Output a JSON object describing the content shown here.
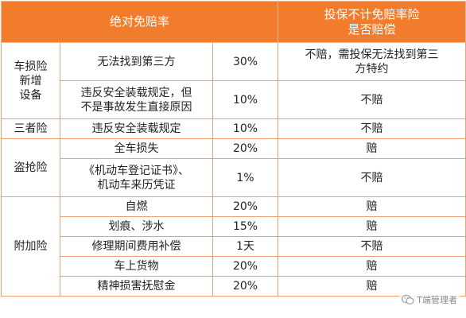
{
  "header": {
    "col_main": "绝对免赔率",
    "col_extra_line1": "投保不计免赔率险",
    "col_extra_line2": "是否赔偿"
  },
  "groups": [
    {
      "category": [
        "车损险",
        "新增",
        "设备"
      ],
      "rows": [
        {
          "item": [
            "无法找到第三方"
          ],
          "rate": "30%",
          "compensation": [
            "不赔，需投保无法找到第三",
            "方特约"
          ]
        },
        {
          "item": [
            "违反安全装载规定，但",
            "不是事故发生直接原因"
          ],
          "rate": "10%",
          "compensation": [
            "不赔"
          ]
        }
      ]
    },
    {
      "category": [
        "三者险"
      ],
      "rows": [
        {
          "item": [
            "违反安全装载规定"
          ],
          "rate": "10%",
          "compensation": [
            "不赔"
          ]
        }
      ]
    },
    {
      "category": [
        "盗抢险"
      ],
      "rows": [
        {
          "item": [
            "全车损失"
          ],
          "rate": "20%",
          "compensation": [
            "赔"
          ]
        },
        {
          "item": [
            "《机动车登记证书》、",
            "机动车来历凭证"
          ],
          "rate": "1%",
          "compensation": [
            "不赔"
          ]
        }
      ]
    },
    {
      "category": [
        "附加险"
      ],
      "rows": [
        {
          "item": [
            "自燃"
          ],
          "rate": "20%",
          "compensation": [
            "赔"
          ]
        },
        {
          "item": [
            "划痕、涉水"
          ],
          "rate": "15%",
          "compensation": [
            "赔"
          ]
        },
        {
          "item": [
            "修理期间费用补偿"
          ],
          "rate": "1天",
          "compensation": [
            "不赔"
          ]
        },
        {
          "item": [
            "车上货物"
          ],
          "rate": "20%",
          "compensation": [
            "赔"
          ]
        },
        {
          "item": [
            "精神损害抚慰金"
          ],
          "rate": "20%",
          "compensation": [
            "赔"
          ]
        }
      ]
    }
  ],
  "watermark": {
    "text": "T端管理者",
    "icon": "wechat-icon"
  },
  "colors": {
    "header_bg": "#f07c2c",
    "header_text": "#ffffff",
    "border": "#f0a070"
  }
}
